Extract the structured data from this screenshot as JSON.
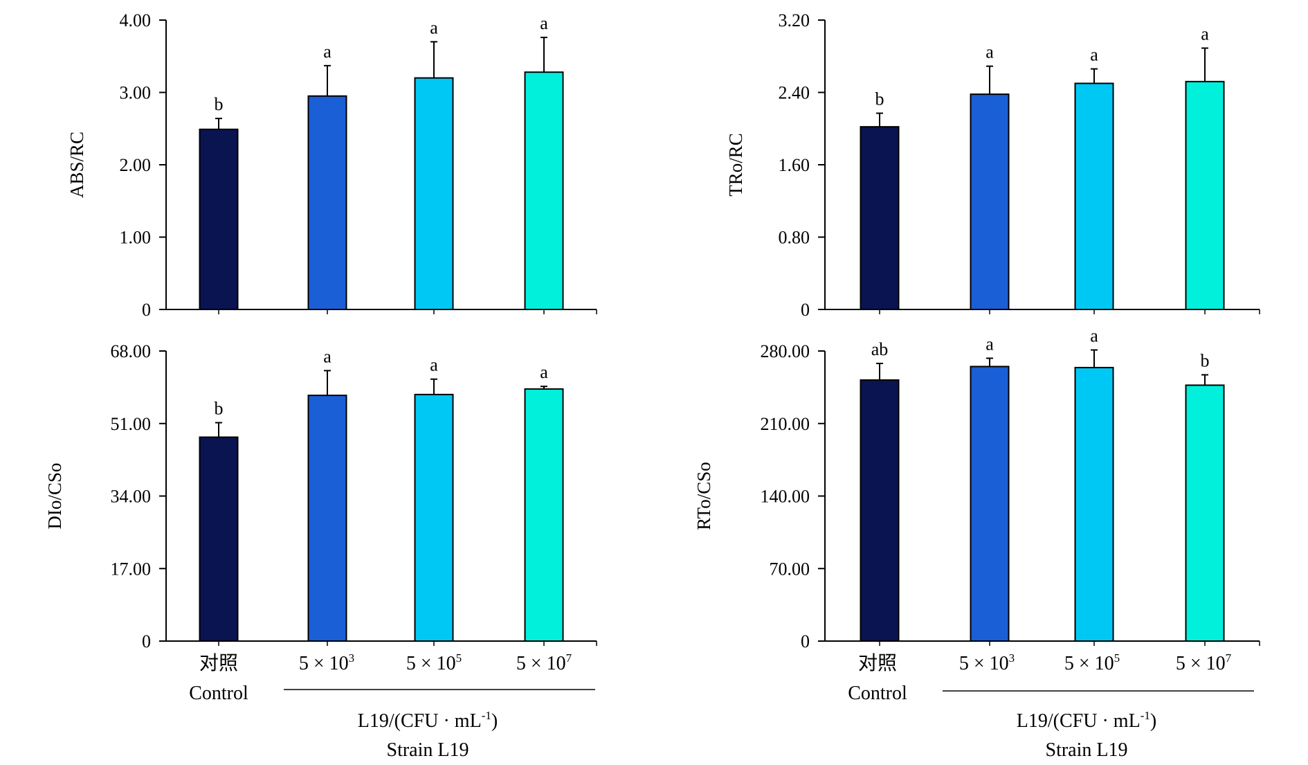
{
  "chart_data": [
    {
      "type": "bar",
      "ylabel": "ABS/RC",
      "ylim": [
        0,
        4
      ],
      "yticks": [
        "0",
        "1.00",
        "2.00",
        "3.00",
        "4.00"
      ],
      "categories": [
        "Control",
        "5 × 10^3",
        "5 × 10^5",
        "5 × 10^7"
      ],
      "values": [
        2.49,
        2.95,
        3.2,
        3.28
      ],
      "errors": [
        0.15,
        0.42,
        0.5,
        0.48
      ],
      "significance": [
        "b",
        "a",
        "a",
        "a"
      ],
      "colors": [
        "#0a1450",
        "#1a5fd6",
        "#00c8f5",
        "#00f0dc"
      ]
    },
    {
      "type": "bar",
      "ylabel": "TRo/RC",
      "ylim": [
        0,
        3.2
      ],
      "yticks": [
        "0",
        "0.80",
        "1.60",
        "2.40",
        "3.20"
      ],
      "categories": [
        "Control",
        "5 × 10^3",
        "5 × 10^5",
        "5 × 10^7"
      ],
      "values": [
        2.02,
        2.38,
        2.5,
        2.52
      ],
      "errors": [
        0.15,
        0.31,
        0.16,
        0.37
      ],
      "significance": [
        "b",
        "a",
        "a",
        "a"
      ],
      "colors": [
        "#0a1450",
        "#1a5fd6",
        "#00c8f5",
        "#00f0dc"
      ]
    },
    {
      "type": "bar",
      "ylabel": "DIo/CSo",
      "ylim": [
        0,
        68
      ],
      "yticks": [
        "0",
        "17.00",
        "34.00",
        "51.00",
        "68.00"
      ],
      "categories": [
        "Control",
        "5 × 10^3",
        "5 × 10^5",
        "5 × 10^7"
      ],
      "values": [
        47.8,
        57.6,
        57.8,
        59.1
      ],
      "errors": [
        3.4,
        5.8,
        3.6,
        0.6
      ],
      "significance": [
        "b",
        "a",
        "a",
        "a"
      ],
      "colors": [
        "#0a1450",
        "#1a5fd6",
        "#00c8f5",
        "#00f0dc"
      ]
    },
    {
      "type": "bar",
      "ylabel": "RTo/CSo",
      "ylim": [
        0,
        280
      ],
      "yticks": [
        "0",
        "70.00",
        "140.00",
        "210.00",
        "280.00"
      ],
      "categories": [
        "Control",
        "5 × 10^3",
        "5 × 10^5",
        "5 × 10^7"
      ],
      "values": [
        252,
        265,
        264,
        247
      ],
      "errors": [
        16,
        8,
        17,
        10
      ],
      "significance": [
        "ab",
        "a",
        "a",
        "b"
      ],
      "colors": [
        "#0a1450",
        "#1a5fd6",
        "#00c8f5",
        "#00f0dc"
      ]
    }
  ],
  "x_axis": {
    "control_cn": "对照",
    "control_en": "Control",
    "dose_base": "5 × 10",
    "dose_exponents": [
      "3",
      "5",
      "7"
    ],
    "title_main": "L19/(CFU · mL",
    "title_sup": "-1",
    "title_end": ")",
    "subtitle": "Strain L19"
  }
}
